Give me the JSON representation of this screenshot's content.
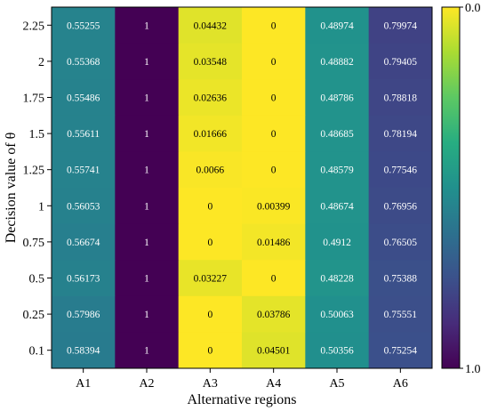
{
  "chart_data": {
    "type": "heatmap",
    "title": "",
    "xlabel": "Alternative regions",
    "ylabel": "Decision value of θ",
    "x_categories": [
      "A1",
      "A2",
      "A3",
      "A4",
      "A5",
      "A6"
    ],
    "y_categories": [
      "2.25",
      "2",
      "1.75",
      "1.5",
      "1.25",
      "1",
      "0.75",
      "0.5",
      "0.25",
      "0.1"
    ],
    "values": [
      [
        0.55255,
        1,
        0.04432,
        0,
        0.48974,
        0.79974
      ],
      [
        0.55368,
        1,
        0.03548,
        0,
        0.48882,
        0.79405
      ],
      [
        0.55486,
        1,
        0.02636,
        0,
        0.48786,
        0.78818
      ],
      [
        0.55611,
        1,
        0.01666,
        0,
        0.48685,
        0.78194
      ],
      [
        0.55741,
        1,
        0.0066,
        0,
        0.48579,
        0.77546
      ],
      [
        0.56053,
        1,
        0,
        0.00399,
        0.48674,
        0.76956
      ],
      [
        0.56674,
        1,
        0,
        0.01486,
        0.4912,
        0.76505
      ],
      [
        0.56173,
        1,
        0.03227,
        0,
        0.48228,
        0.75388
      ],
      [
        0.57986,
        1,
        0,
        0.03786,
        0.50063,
        0.75551
      ],
      [
        0.58394,
        1,
        0,
        0.04501,
        0.50356,
        0.75254
      ]
    ],
    "value_labels": [
      [
        "0.55255",
        "1",
        "0.04432",
        "0",
        "0.48974",
        "0.79974"
      ],
      [
        "0.55368",
        "1",
        "0.03548",
        "0",
        "0.48882",
        "0.79405"
      ],
      [
        "0.55486",
        "1",
        "0.02636",
        "0",
        "0.48786",
        "0.78818"
      ],
      [
        "0.55611",
        "1",
        "0.01666",
        "0",
        "0.48685",
        "0.78194"
      ],
      [
        "0.55741",
        "1",
        "0.0066",
        "0",
        "0.48579",
        "0.77546"
      ],
      [
        "0.56053",
        "1",
        "0",
        "0.00399",
        "0.48674",
        "0.76956"
      ],
      [
        "0.56674",
        "1",
        "0",
        "0.01486",
        "0.4912",
        "0.76505"
      ],
      [
        "0.56173",
        "1",
        "0.03227",
        "0",
        "0.48228",
        "0.75388"
      ],
      [
        "0.57986",
        "1",
        "0",
        "0.03786",
        "0.50063",
        "0.75551"
      ],
      [
        "0.58394",
        "1",
        "0",
        "0.04501",
        "0.50356",
        "0.75254"
      ]
    ],
    "colormap": "viridis (reversed)",
    "colorbar": {
      "min_label": "0.0",
      "max_label": "1.0",
      "range": [
        0,
        1
      ],
      "position": "right"
    },
    "colors": {
      "low": "#fde725",
      "high": "#440154"
    }
  }
}
